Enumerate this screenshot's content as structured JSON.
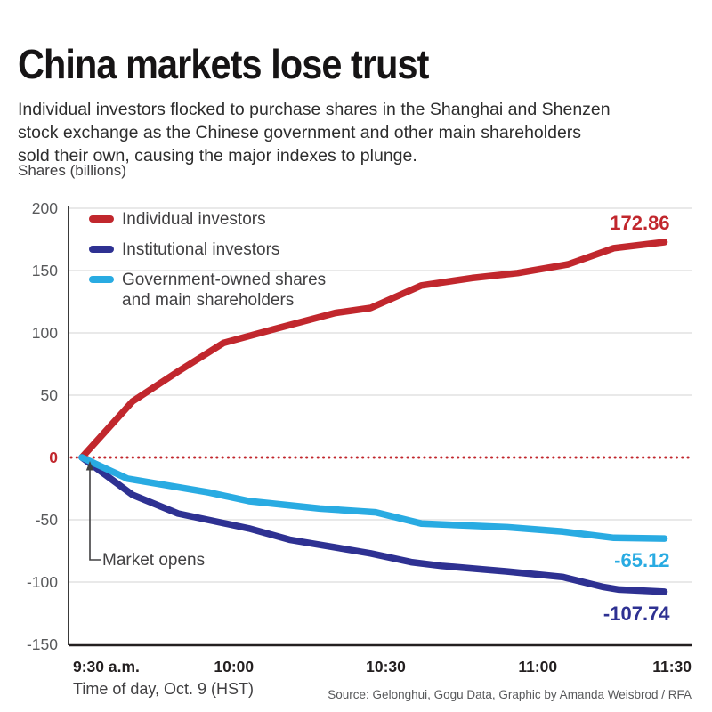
{
  "chart_data": {
    "type": "line",
    "title": "China markets lose trust",
    "subtitle": "Individual investors flocked to purchase shares in the Shanghai and Shenzen\nstock exchange as the Chinese government and other main shareholders\nsold their own, causing the major indexes to plunge.",
    "unit_label": "Shares (billions)",
    "xlabel": "Time of day, Oct. 9 (HST)",
    "source": "Source: Gelonghui, Gogu Data, Graphic by Amanda Weisbrod / RFA",
    "annotation": "Market opens",
    "ylim": [
      -150,
      200
    ],
    "y_ticks": [
      200,
      150,
      100,
      50,
      0,
      -50,
      -100,
      -150
    ],
    "gridline_values": [
      200,
      150,
      100,
      50,
      -50,
      -100
    ],
    "zero_line_dotted": true,
    "x_axis_minutes_range": [
      0,
      120
    ],
    "x_ticks": [
      {
        "minutes": 0,
        "label": "9:30 a.m."
      },
      {
        "minutes": 30,
        "label": "10:00"
      },
      {
        "minutes": 60,
        "label": "10:30"
      },
      {
        "minutes": 90,
        "label": "11:00"
      },
      {
        "minutes": 120,
        "label": "11:30"
      }
    ],
    "colors": {
      "individual": "#c1272d",
      "institutional": "#2e3192",
      "government": "#29abe2",
      "grid": "#dcdcdc",
      "axis": "#231f20",
      "zero_dotted": "#c1272d",
      "text_dark": "#231f20",
      "text_gray": "#414042",
      "tick_gray": "#58595b"
    },
    "series": [
      {
        "name": "Individual investors",
        "color": "#c1272d",
        "end_label": "172.86",
        "end_value": 172.86,
        "points_minutes_value": [
          [
            0,
            0
          ],
          [
            10,
            45
          ],
          [
            19,
            69
          ],
          [
            28,
            92
          ],
          [
            38,
            103
          ],
          [
            50,
            116
          ],
          [
            57,
            120
          ],
          [
            67,
            138
          ],
          [
            77,
            144
          ],
          [
            86,
            148
          ],
          [
            96,
            155
          ],
          [
            105,
            168
          ],
          [
            115,
            172.86
          ]
        ]
      },
      {
        "name": "Institutional investors",
        "color": "#2e3192",
        "end_label": "-107.74",
        "end_value": -107.74,
        "points_minutes_value": [
          [
            0,
            0
          ],
          [
            10,
            -30
          ],
          [
            19,
            -45
          ],
          [
            33,
            -57
          ],
          [
            41,
            -66
          ],
          [
            57,
            -77
          ],
          [
            65,
            -84
          ],
          [
            71,
            -87
          ],
          [
            84,
            -91.5
          ],
          [
            95,
            -96
          ],
          [
            103,
            -104
          ],
          [
            106,
            -106
          ],
          [
            115,
            -107.74
          ]
        ]
      },
      {
        "name": "Government-owned shares\nand main shareholders",
        "color": "#29abe2",
        "end_label": "-65.12",
        "end_value": -65.12,
        "points_minutes_value": [
          [
            0,
            0
          ],
          [
            9,
            -17
          ],
          [
            25,
            -28
          ],
          [
            33,
            -35
          ],
          [
            47,
            -41
          ],
          [
            58,
            -44
          ],
          [
            67,
            -53
          ],
          [
            84,
            -56
          ],
          [
            95,
            -59.5
          ],
          [
            105,
            -64.5
          ],
          [
            115,
            -65.12
          ]
        ]
      }
    ]
  }
}
